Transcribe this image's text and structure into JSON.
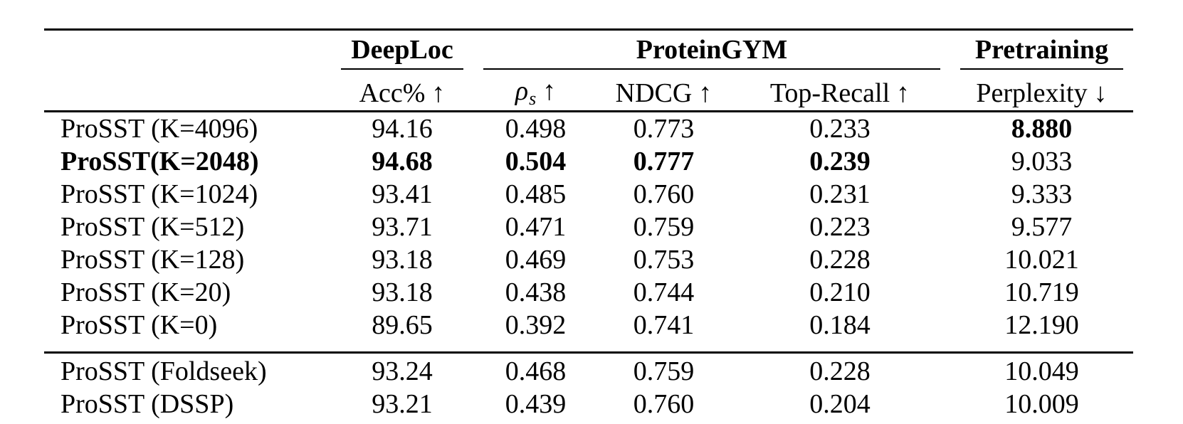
{
  "colors": {
    "text": "#000000",
    "background": "#ffffff",
    "rule": "#000000"
  },
  "table": {
    "groups": {
      "deeploc": "DeepLoc",
      "proteingym": "ProteinGYM",
      "pretraining": "Pretraining"
    },
    "subheaders": {
      "acc": {
        "label": "Acc%",
        "arrow": "↑"
      },
      "rho": {
        "symbol": "ρ",
        "sub": "s",
        "arrow": "↑"
      },
      "ndcg": {
        "label": "NDCG",
        "arrow": "↑"
      },
      "top_recall": {
        "label": "Top-Recall",
        "arrow": "↑"
      },
      "perplexity": {
        "label": "Perplexity",
        "arrow": "↓"
      }
    },
    "rows": [
      {
        "label": "ProSST (K=4096)",
        "acc": "94.16",
        "rho": "0.498",
        "ndcg": "0.773",
        "top_recall": "0.233",
        "perplexity": "8.880",
        "bold": [
          "perplexity"
        ],
        "rule_before": false,
        "section_end": false
      },
      {
        "label": "ProSST(K=2048)",
        "acc": "94.68",
        "rho": "0.504",
        "ndcg": "0.777",
        "top_recall": "0.239",
        "perplexity": "9.033",
        "bold": [
          "label",
          "acc",
          "rho",
          "ndcg",
          "top_recall"
        ],
        "rule_before": false,
        "section_end": false
      },
      {
        "label": "ProSST (K=1024)",
        "acc": "93.41",
        "rho": "0.485",
        "ndcg": "0.760",
        "top_recall": "0.231",
        "perplexity": "9.333",
        "bold": [],
        "rule_before": false,
        "section_end": false
      },
      {
        "label": "ProSST (K=512)",
        "acc": "93.71",
        "rho": "0.471",
        "ndcg": "0.759",
        "top_recall": "0.223",
        "perplexity": "9.577",
        "bold": [],
        "rule_before": false,
        "section_end": false
      },
      {
        "label": "ProSST (K=128)",
        "acc": "93.18",
        "rho": "0.469",
        "ndcg": "0.753",
        "top_recall": "0.228",
        "perplexity": "10.021",
        "bold": [],
        "rule_before": false,
        "section_end": false
      },
      {
        "label": "ProSST (K=20)",
        "acc": "93.18",
        "rho": "0.438",
        "ndcg": "0.744",
        "top_recall": "0.210",
        "perplexity": "10.719",
        "bold": [],
        "rule_before": false,
        "section_end": false
      },
      {
        "label": "ProSST (K=0)",
        "acc": "89.65",
        "rho": "0.392",
        "ndcg": "0.741",
        "top_recall": "0.184",
        "perplexity": "12.190",
        "bold": [],
        "rule_before": false,
        "section_end": true
      },
      {
        "label": "ProSST (Foldseek)",
        "acc": "93.24",
        "rho": "0.468",
        "ndcg": "0.759",
        "top_recall": "0.228",
        "perplexity": "10.049",
        "bold": [],
        "rule_before": true,
        "section_end": false
      },
      {
        "label": "ProSST (DSSP)",
        "acc": "93.21",
        "rho": "0.439",
        "ndcg": "0.760",
        "top_recall": "0.204",
        "perplexity": "10.009",
        "bold": [],
        "rule_before": false,
        "section_end": false
      }
    ]
  }
}
